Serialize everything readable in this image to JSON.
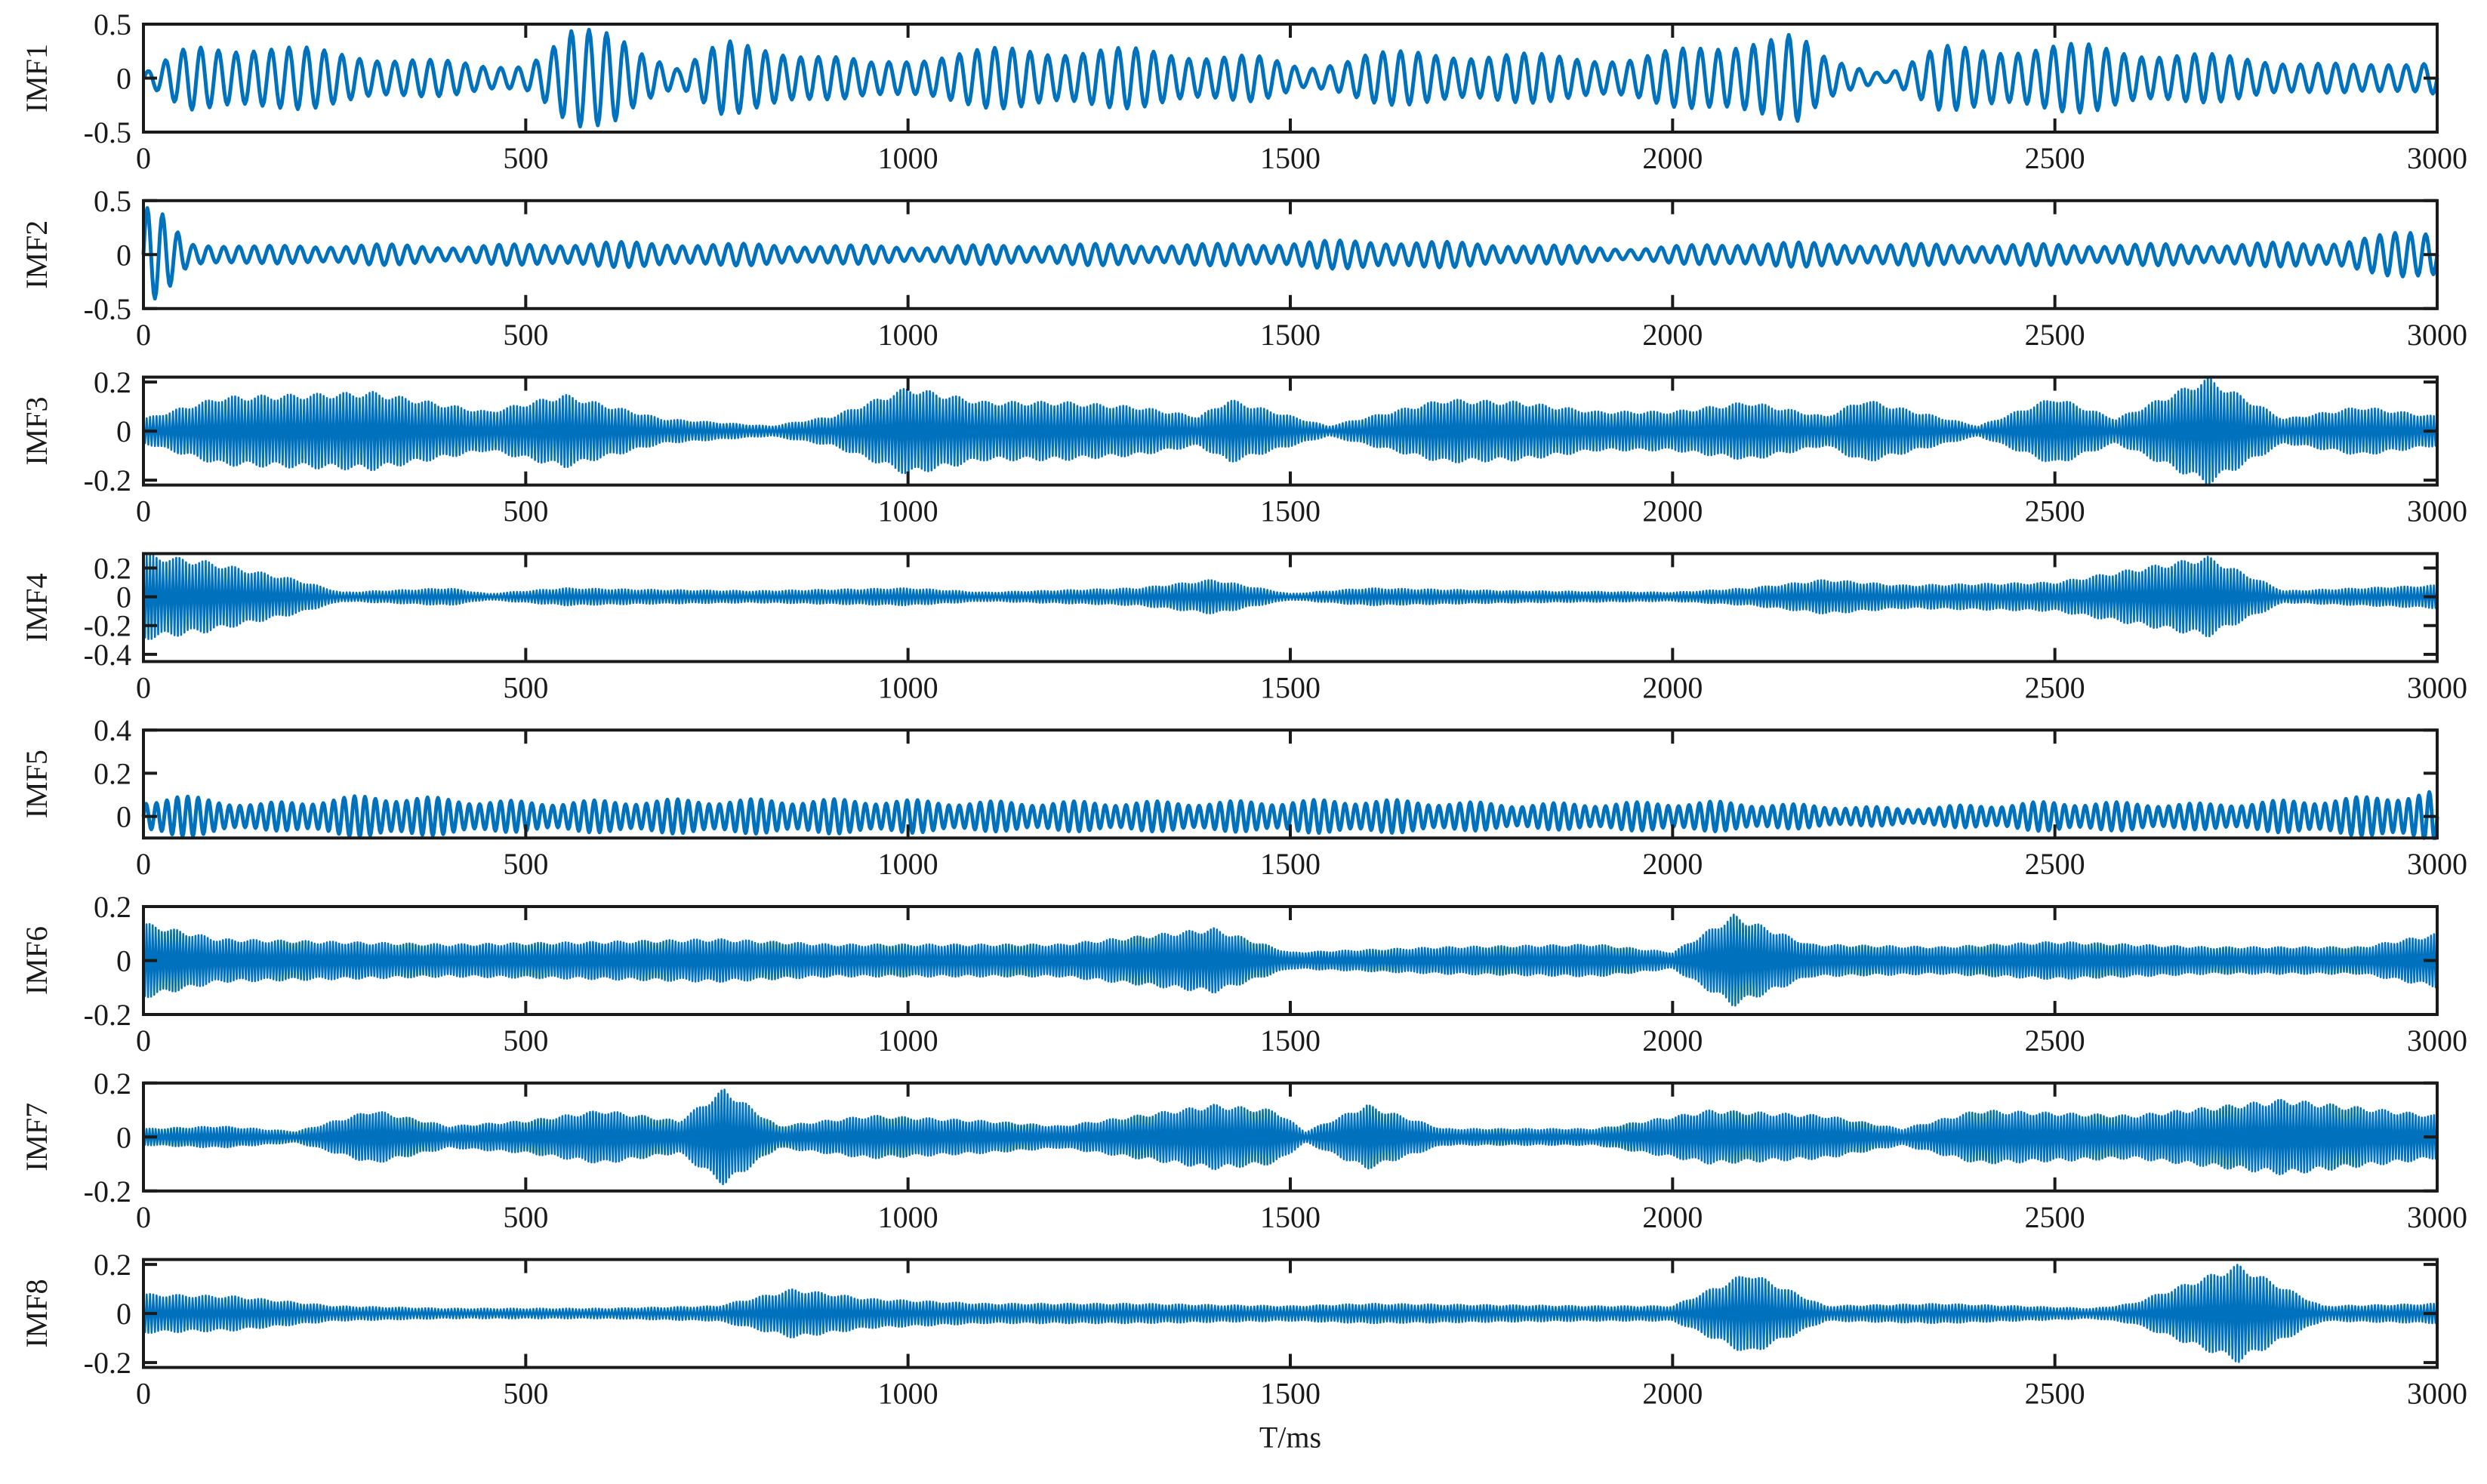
{
  "chart_data": [
    {
      "type": "line",
      "ylabel": "IMF1",
      "xlim": [
        0,
        3000
      ],
      "ylim": [
        -0.5,
        0.5
      ],
      "yticks": [
        {
          "v": 0.5,
          "label": "0.5"
        },
        {
          "v": 0,
          "label": "0"
        },
        {
          "v": -0.5,
          "label": "-0.5"
        }
      ],
      "xticks": [
        "0",
        "500",
        "1000",
        "1500",
        "2000",
        "2500",
        "3000"
      ],
      "series": [
        {
          "color": "#0072BD",
          "amplitude_envelope": [
            [
              0,
              0.05
            ],
            [
              60,
              0.3
            ],
            [
              150,
              0.35
            ],
            [
              250,
              0.25
            ],
            [
              350,
              0.2
            ],
            [
              450,
              0.12
            ],
            [
              500,
              0.15
            ],
            [
              560,
              0.45
            ],
            [
              620,
              0.45
            ],
            [
              700,
              0.1
            ],
            [
              760,
              0.35
            ],
            [
              820,
              0.32
            ],
            [
              950,
              0.15
            ],
            [
              1050,
              0.25
            ],
            [
              1150,
              0.3
            ],
            [
              1300,
              0.28
            ],
            [
              1450,
              0.22
            ],
            [
              1520,
              0.1
            ],
            [
              1600,
              0.25
            ],
            [
              1750,
              0.25
            ],
            [
              1850,
              0.22
            ],
            [
              1950,
              0.2
            ],
            [
              2050,
              0.33
            ],
            [
              2100,
              0.42
            ],
            [
              2160,
              0.42
            ],
            [
              2200,
              0.2
            ],
            [
              2280,
              0.05
            ],
            [
              2350,
              0.3
            ],
            [
              2450,
              0.32
            ],
            [
              2550,
              0.32
            ],
            [
              2650,
              0.25
            ],
            [
              2800,
              0.18
            ],
            [
              2900,
              0.12
            ],
            [
              3000,
              0.2
            ]
          ],
          "cycles": 130
        }
      ]
    },
    {
      "type": "line",
      "ylabel": "IMF2",
      "xlim": [
        0,
        3000
      ],
      "ylim": [
        -0.5,
        0.5
      ],
      "yticks": [
        {
          "v": 0.5,
          "label": "0.5"
        },
        {
          "v": 0,
          "label": "0"
        },
        {
          "v": -0.5,
          "label": "-0.5"
        }
      ],
      "xticks": [
        "0",
        "500",
        "1000",
        "1500",
        "2000",
        "2500",
        "3000"
      ],
      "series": [
        {
          "color": "#0072BD",
          "amplitude_envelope": [
            [
              0,
              0.45
            ],
            [
              25,
              0.38
            ],
            [
              60,
              0.12
            ],
            [
              150,
              0.08
            ],
            [
              300,
              0.1
            ],
            [
              400,
              0.08
            ],
            [
              600,
              0.12
            ],
            [
              800,
              0.1
            ],
            [
              1000,
              0.08
            ],
            [
              1200,
              0.1
            ],
            [
              1400,
              0.1
            ],
            [
              1600,
              0.14
            ],
            [
              1800,
              0.1
            ],
            [
              1950,
              0.06
            ],
            [
              2100,
              0.12
            ],
            [
              2300,
              0.1
            ],
            [
              2500,
              0.1
            ],
            [
              2700,
              0.1
            ],
            [
              2850,
              0.12
            ],
            [
              3000,
              0.25
            ]
          ],
          "cycles": 150
        }
      ]
    },
    {
      "type": "line",
      "ylabel": "IMF3",
      "xlim": [
        0,
        3000
      ],
      "ylim": [
        -0.22,
        0.22
      ],
      "yticks": [
        {
          "v": 0.2,
          "label": "0.2"
        },
        {
          "v": 0,
          "label": "0"
        },
        {
          "v": -0.2,
          "label": "-0.2"
        }
      ],
      "xticks": [
        "0",
        "500",
        "1000",
        "1500",
        "2000",
        "2500",
        "3000"
      ],
      "series": [
        {
          "color": "#0072BD",
          "amplitude_envelope": [
            [
              0,
              0.05
            ],
            [
              100,
              0.14
            ],
            [
              300,
              0.16
            ],
            [
              450,
              0.08
            ],
            [
              550,
              0.15
            ],
            [
              680,
              0.05
            ],
            [
              820,
              0.02
            ],
            [
              900,
              0.06
            ],
            [
              1000,
              0.18
            ],
            [
              1100,
              0.12
            ],
            [
              1200,
              0.12
            ],
            [
              1300,
              0.1
            ],
            [
              1380,
              0.06
            ],
            [
              1420,
              0.13
            ],
            [
              1550,
              0.02
            ],
            [
              1700,
              0.13
            ],
            [
              1800,
              0.12
            ],
            [
              1900,
              0.08
            ],
            [
              2000,
              0.08
            ],
            [
              2100,
              0.12
            ],
            [
              2200,
              0.06
            ],
            [
              2250,
              0.13
            ],
            [
              2400,
              0.02
            ],
            [
              2500,
              0.14
            ],
            [
              2580,
              0.05
            ],
            [
              2700,
              0.22
            ],
            [
              2800,
              0.05
            ],
            [
              2900,
              0.1
            ],
            [
              3000,
              0.06
            ]
          ],
          "cycles": 700
        }
      ]
    },
    {
      "type": "line",
      "ylabel": "IMF4",
      "xlim": [
        0,
        3000
      ],
      "ylim": [
        -0.45,
        0.3
      ],
      "yticks": [
        {
          "v": 0.2,
          "label": "0.2"
        },
        {
          "v": 0,
          "label": "0"
        },
        {
          "v": -0.2,
          "label": "-0.2"
        },
        {
          "v": -0.4,
          "label": "-0.4"
        }
      ],
      "xticks": [
        "0",
        "500",
        "1000",
        "1500",
        "2000",
        "2500",
        "3000"
      ],
      "series": [
        {
          "color": "#0072BD",
          "amplitude_envelope": [
            [
              0,
              0.3
            ],
            [
              80,
              0.25
            ],
            [
              200,
              0.12
            ],
            [
              260,
              0.03
            ],
            [
              400,
              0.06
            ],
            [
              450,
              0.02
            ],
            [
              550,
              0.06
            ],
            [
              650,
              0.05
            ],
            [
              800,
              0.04
            ],
            [
              1000,
              0.06
            ],
            [
              1100,
              0.03
            ],
            [
              1300,
              0.06
            ],
            [
              1400,
              0.12
            ],
            [
              1500,
              0.02
            ],
            [
              1600,
              0.06
            ],
            [
              1800,
              0.04
            ],
            [
              2000,
              0.03
            ],
            [
              2100,
              0.06
            ],
            [
              2200,
              0.12
            ],
            [
              2300,
              0.08
            ],
            [
              2500,
              0.1
            ],
            [
              2700,
              0.28
            ],
            [
              2800,
              0.04
            ],
            [
              2900,
              0.06
            ],
            [
              3000,
              0.08
            ]
          ],
          "cycles": 700
        }
      ]
    },
    {
      "type": "line",
      "ylabel": "IMF5",
      "xlim": [
        0,
        3000
      ],
      "ylim": [
        -0.1,
        0.4
      ],
      "yticks": [
        {
          "v": 0.4,
          "label": "0.4"
        },
        {
          "v": 0.2,
          "label": "0.2"
        },
        {
          "v": 0,
          "label": "0"
        }
      ],
      "xticks": [
        "0",
        "500",
        "1000",
        "1500",
        "2000",
        "2500",
        "3000"
      ],
      "series": [
        {
          "color": "#0072BD",
          "amplitude_envelope": [
            [
              0,
              0.08
            ],
            [
              40,
              0.1
            ],
            [
              150,
              0.06
            ],
            [
              300,
              0.1
            ],
            [
              500,
              0.07
            ],
            [
              700,
              0.08
            ],
            [
              950,
              0.08
            ],
            [
              1100,
              0.07
            ],
            [
              1400,
              0.07
            ],
            [
              1600,
              0.08
            ],
            [
              1800,
              0.06
            ],
            [
              2050,
              0.07
            ],
            [
              2300,
              0.04
            ],
            [
              2500,
              0.07
            ],
            [
              2700,
              0.06
            ],
            [
              2900,
              0.09
            ],
            [
              3000,
              0.12
            ]
          ],
          "cycles": 220
        }
      ]
    },
    {
      "type": "line",
      "ylabel": "IMF6",
      "xlim": [
        0,
        3000
      ],
      "ylim": [
        -0.2,
        0.2
      ],
      "yticks": [
        {
          "v": 0.2,
          "label": "0.2"
        },
        {
          "v": 0,
          "label": "0"
        },
        {
          "v": -0.2,
          "label": "-0.2"
        }
      ],
      "xticks": [
        "0",
        "500",
        "1000",
        "1500",
        "2000",
        "2500",
        "3000"
      ],
      "series": [
        {
          "color": "#0072BD",
          "amplitude_envelope": [
            [
              0,
              0.14
            ],
            [
              100,
              0.08
            ],
            [
              250,
              0.07
            ],
            [
              400,
              0.06
            ],
            [
              600,
              0.07
            ],
            [
              750,
              0.08
            ],
            [
              900,
              0.06
            ],
            [
              1050,
              0.06
            ],
            [
              1200,
              0.06
            ],
            [
              1400,
              0.12
            ],
            [
              1500,
              0.03
            ],
            [
              1700,
              0.05
            ],
            [
              1900,
              0.06
            ],
            [
              2000,
              0.03
            ],
            [
              2080,
              0.17
            ],
            [
              2180,
              0.06
            ],
            [
              2350,
              0.05
            ],
            [
              2500,
              0.07
            ],
            [
              2700,
              0.05
            ],
            [
              2900,
              0.05
            ],
            [
              3000,
              0.1
            ]
          ],
          "cycles": 750
        }
      ]
    },
    {
      "type": "line",
      "ylabel": "IMF7",
      "xlim": [
        0,
        3000
      ],
      "ylim": [
        -0.2,
        0.2
      ],
      "yticks": [
        {
          "v": 0.2,
          "label": "0.2"
        },
        {
          "v": 0,
          "label": "0"
        },
        {
          "v": -0.2,
          "label": "-0.2"
        }
      ],
      "xticks": [
        "0",
        "500",
        "1000",
        "1500",
        "2000",
        "2500",
        "3000"
      ],
      "series": [
        {
          "color": "#0072BD",
          "amplitude_envelope": [
            [
              0,
              0.03
            ],
            [
              100,
              0.04
            ],
            [
              200,
              0.02
            ],
            [
              300,
              0.1
            ],
            [
              400,
              0.04
            ],
            [
              500,
              0.06
            ],
            [
              600,
              0.1
            ],
            [
              700,
              0.06
            ],
            [
              760,
              0.18
            ],
            [
              830,
              0.04
            ],
            [
              950,
              0.08
            ],
            [
              1100,
              0.06
            ],
            [
              1200,
              0.04
            ],
            [
              1400,
              0.12
            ],
            [
              1480,
              0.1
            ],
            [
              1520,
              0.02
            ],
            [
              1600,
              0.12
            ],
            [
              1700,
              0.03
            ],
            [
              1900,
              0.03
            ],
            [
              2050,
              0.1
            ],
            [
              2200,
              0.08
            ],
            [
              2300,
              0.03
            ],
            [
              2400,
              0.1
            ],
            [
              2600,
              0.08
            ],
            [
              2800,
              0.14
            ],
            [
              3000,
              0.08
            ]
          ],
          "cycles": 750
        }
      ]
    },
    {
      "type": "line",
      "ylabel": "IMF8",
      "xlim": [
        0,
        3000
      ],
      "ylim": [
        -0.22,
        0.22
      ],
      "yticks": [
        {
          "v": 0.2,
          "label": "0.2"
        },
        {
          "v": 0,
          "label": "0"
        },
        {
          "v": -0.2,
          "label": "-0.2"
        }
      ],
      "xticks": [
        "0",
        "500",
        "1000",
        "1500",
        "2000",
        "2500",
        "3000"
      ],
      "xlabel": "T/ms",
      "series": [
        {
          "color": "#0072BD",
          "amplitude_envelope": [
            [
              0,
              0.08
            ],
            [
              120,
              0.07
            ],
            [
              250,
              0.03
            ],
            [
              400,
              0.02
            ],
            [
              600,
              0.02
            ],
            [
              750,
              0.03
            ],
            [
              850,
              0.1
            ],
            [
              950,
              0.06
            ],
            [
              1100,
              0.04
            ],
            [
              1300,
              0.04
            ],
            [
              1500,
              0.03
            ],
            [
              1600,
              0.04
            ],
            [
              1900,
              0.03
            ],
            [
              2000,
              0.03
            ],
            [
              2100,
              0.17
            ],
            [
              2200,
              0.03
            ],
            [
              2350,
              0.04
            ],
            [
              2550,
              0.02
            ],
            [
              2600,
              0.04
            ],
            [
              2740,
              0.2
            ],
            [
              2850,
              0.03
            ],
            [
              3000,
              0.04
            ]
          ],
          "cycles": 700
        }
      ]
    }
  ]
}
